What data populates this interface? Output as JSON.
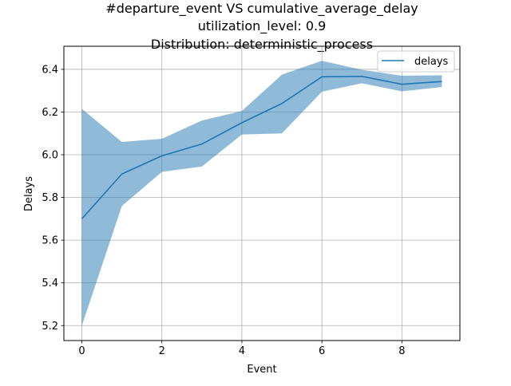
{
  "chart_data": {
    "type": "line",
    "title_lines": [
      "#departure_event VS cumulative_average_delay",
      "utilization_level: 0.9",
      "Distribution: deterministic_process"
    ],
    "xlabel": "Event",
    "ylabel": "Delays",
    "x": [
      0,
      1,
      2,
      3,
      4,
      5,
      6,
      7,
      8,
      9
    ],
    "series": [
      {
        "name": "delays",
        "values": [
          5.7,
          5.91,
          5.995,
          6.05,
          6.15,
          6.24,
          6.365,
          6.367,
          6.33,
          6.343
        ],
        "band_upper": [
          6.215,
          6.06,
          6.075,
          6.16,
          6.205,
          6.375,
          6.44,
          6.398,
          6.37,
          6.372
        ],
        "band_lower": [
          5.2,
          5.76,
          5.92,
          5.945,
          6.095,
          6.1,
          6.295,
          6.335,
          6.297,
          6.317
        ]
      }
    ],
    "xlim": [
      -0.45,
      9.45
    ],
    "ylim": [
      5.13,
      6.508
    ],
    "xticks": [
      0,
      2,
      4,
      6,
      8
    ],
    "xtick_labels": [
      "0",
      "2",
      "4",
      "6",
      "8"
    ],
    "yticks": [
      5.2,
      5.4,
      5.6,
      5.8,
      6.0,
      6.2,
      6.4
    ],
    "ytick_labels": [
      "5.2",
      "5.4",
      "5.6",
      "5.8",
      "6.0",
      "6.2",
      "6.4"
    ],
    "grid": true,
    "legend_position": "top-right",
    "colors": {
      "line": "#1f77b4",
      "band": "#1f77b4",
      "grid": "#b0b0b0"
    }
  }
}
